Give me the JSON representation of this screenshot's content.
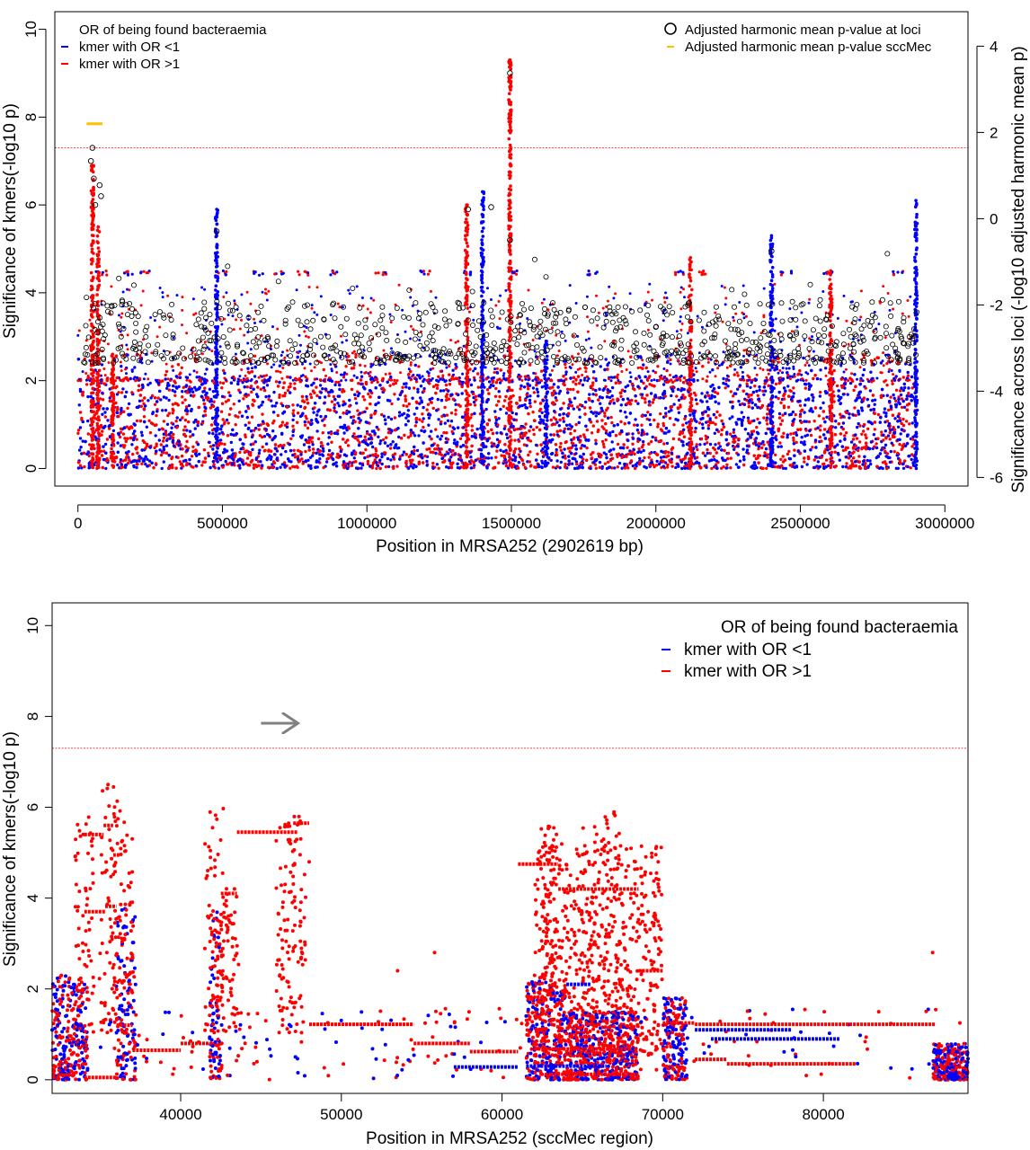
{
  "colors": {
    "blue": "#0000ff",
    "red": "#ff0000",
    "black": "#000000",
    "gold": "#ffc000",
    "threshold": "#ff4444",
    "arrow": "#808080"
  },
  "chart_data": [
    {
      "type": "scatter",
      "title": "",
      "xlabel": "Position in MRSA252 (2902619 bp)",
      "ylabel": "Significance of kmers(-log10 p)",
      "y2label": "Significance across loci (-log10 adjusted harmonic mean p)",
      "xlim": [
        -80000,
        3080000
      ],
      "ylim": [
        -0.4,
        10.4
      ],
      "y2lim": [
        -6.2,
        4.8
      ],
      "x_ticks": [
        0,
        500000,
        1000000,
        1500000,
        2000000,
        2500000,
        3000000
      ],
      "x_tick_labels": [
        "0",
        "500000",
        "1000000",
        "1500000",
        "2000000",
        "2500000",
        "3000000"
      ],
      "y_ticks": [
        0,
        2,
        4,
        6,
        8,
        10
      ],
      "y_tick_labels": [
        "0",
        "2",
        "4",
        "6",
        "8",
        "10"
      ],
      "y2_ticks": [
        -6,
        -4,
        -2,
        0,
        2,
        4
      ],
      "y2_tick_labels": [
        "-6",
        "-4",
        "-2",
        "0",
        "2",
        "4"
      ],
      "threshold_y": 7.3,
      "legend_left": {
        "title": "OR of being found bacteraemia",
        "entries": [
          "kmer with OR <1",
          "kmer with OR >1"
        ]
      },
      "legend_right": {
        "entries": [
          "Adjusted harmonic mean p-value at loci",
          "Adjusted harmonic mean p-value sccMec"
        ]
      },
      "sccmec_segment": {
        "x": [
          30000,
          85000
        ],
        "y2": 2.2
      },
      "peaks": [
        {
          "x": 50000,
          "ymax": 6.9,
          "color": "red"
        },
        {
          "x": 70000,
          "ymax": 5.5,
          "color": "red"
        },
        {
          "x": 120000,
          "ymax": 2.6,
          "color": "red"
        },
        {
          "x": 480000,
          "ymax": 5.9,
          "color": "blue"
        },
        {
          "x": 1345000,
          "ymax": 6.0,
          "color": "red"
        },
        {
          "x": 1400000,
          "ymax": 6.3,
          "color": "blue"
        },
        {
          "x": 1495000,
          "ymax": 9.3,
          "color": "red"
        },
        {
          "x": 1620000,
          "ymax": 2.9,
          "color": "blue"
        },
        {
          "x": 2120000,
          "ymax": 4.8,
          "color": "red"
        },
        {
          "x": 2400000,
          "ymax": 5.3,
          "color": "blue"
        },
        {
          "x": 2605000,
          "ymax": 4.5,
          "color": "red"
        },
        {
          "x": 2900000,
          "ymax": 6.1,
          "color": "blue"
        }
      ],
      "band_4_5": [
        80000,
        180000,
        230000,
        500000,
        620000,
        700000,
        780000,
        880000,
        1050000,
        1200000,
        1340000,
        1510000,
        1780000,
        2080000,
        2170000,
        2450000,
        2600000,
        2840000
      ],
      "loci_circles": [
        {
          "x": 50000,
          "y": 7.3
        },
        {
          "x": 45000,
          "y": 7.0
        },
        {
          "x": 55000,
          "y": 6.6
        },
        {
          "x": 60000,
          "y": 6.0
        },
        {
          "x": 75000,
          "y": 6.45
        },
        {
          "x": 80000,
          "y": 6.2
        },
        {
          "x": 1495000,
          "y": 9.0
        },
        {
          "x": 1495000,
          "y": 5.2
        },
        {
          "x": 1430000,
          "y": 5.95
        },
        {
          "x": 1350000,
          "y": 5.9
        },
        {
          "x": 480000,
          "y": 5.4
        },
        {
          "x": 2400000,
          "y": 4.95
        }
      ]
    },
    {
      "type": "scatter",
      "title": "",
      "xlabel": "Position in MRSA252 (sccMec region)",
      "ylabel": "Significance of kmers(-log10 p)",
      "xlim": [
        32000,
        89000
      ],
      "ylim": [
        -0.3,
        10.5
      ],
      "x_ticks": [
        40000,
        50000,
        60000,
        70000,
        80000
      ],
      "x_tick_labels": [
        "40000",
        "50000",
        "60000",
        "70000",
        "80000"
      ],
      "y_ticks": [
        0,
        2,
        4,
        6,
        8,
        10
      ],
      "y_tick_labels": [
        "0",
        "2",
        "4",
        "6",
        "8",
        "10"
      ],
      "threshold_y": 7.3,
      "legend": {
        "title": "OR of being found bacteraemia",
        "entries": [
          "kmer with OR <1",
          "kmer with OR >1"
        ]
      },
      "arrow": {
        "x": [
          45000,
          47300
        ],
        "y": 7.85
      },
      "red_segments": [
        {
          "x0": 34000,
          "x1": 35200,
          "y": 5.4
        },
        {
          "x0": 35200,
          "x1": 35800,
          "y": 5.6
        },
        {
          "x0": 34000,
          "x1": 35300,
          "y": 3.7
        },
        {
          "x0": 35300,
          "x1": 36000,
          "y": 3.82
        },
        {
          "x0": 35800,
          "x1": 36200,
          "y": 4.95
        },
        {
          "x0": 36000,
          "x1": 37000,
          "y": 1.2
        },
        {
          "x0": 37000,
          "x1": 40000,
          "y": 0.65
        },
        {
          "x0": 40000,
          "x1": 42000,
          "y": 0.8
        },
        {
          "x0": 42500,
          "x1": 43500,
          "y": 4.1
        },
        {
          "x0": 43500,
          "x1": 47300,
          "y": 5.45
        },
        {
          "x0": 47000,
          "x1": 48000,
          "y": 5.65
        },
        {
          "x0": 48000,
          "x1": 54500,
          "y": 1.22
        },
        {
          "x0": 54500,
          "x1": 58000,
          "y": 0.8
        },
        {
          "x0": 58000,
          "x1": 61000,
          "y": 0.62
        },
        {
          "x0": 61000,
          "x1": 63500,
          "y": 4.75
        },
        {
          "x0": 63500,
          "x1": 68500,
          "y": 4.2
        },
        {
          "x0": 68500,
          "x1": 70000,
          "y": 2.4
        },
        {
          "x0": 70000,
          "x1": 72000,
          "y": 1.25
        },
        {
          "x0": 72000,
          "x1": 87000,
          "y": 1.22
        },
        {
          "x0": 72000,
          "x1": 74000,
          "y": 0.45
        },
        {
          "x0": 74000,
          "x1": 82000,
          "y": 0.35
        },
        {
          "x0": 62000,
          "x1": 68000,
          "y": 0.68
        },
        {
          "x0": 63000,
          "x1": 68500,
          "y": 0.12
        },
        {
          "x0": 34000,
          "x1": 36000,
          "y": 0.05
        }
      ],
      "blue_segments": [
        {
          "x0": 57000,
          "x1": 61000,
          "y": 0.28
        },
        {
          "x0": 61500,
          "x1": 66500,
          "y": 0.3
        },
        {
          "x0": 64000,
          "x1": 65500,
          "y": 2.1
        },
        {
          "x0": 72000,
          "x1": 78000,
          "y": 1.1
        },
        {
          "x0": 73000,
          "x1": 81000,
          "y": 0.9
        }
      ],
      "dense_clusters": [
        {
          "x0": 32000,
          "x1": 34200,
          "ymax": 2.3
        },
        {
          "x0": 36000,
          "x1": 37200,
          "ymax": 3.9
        },
        {
          "x0": 41800,
          "x1": 42600,
          "ymax": 3.8
        },
        {
          "x0": 61500,
          "x1": 64000,
          "ymax": 2.2
        },
        {
          "x0": 64000,
          "x1": 68500,
          "ymax": 1.5
        },
        {
          "x0": 70000,
          "x1": 71500,
          "ymax": 1.8
        },
        {
          "x0": 86800,
          "x1": 89000,
          "ymax": 0.8
        }
      ]
    }
  ]
}
